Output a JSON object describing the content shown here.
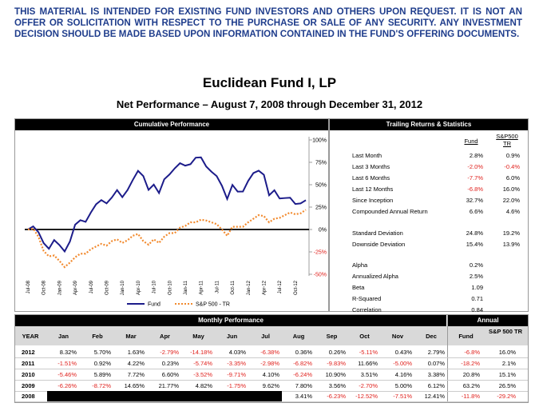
{
  "disclaimer": "THIS MATERIAL IS INTENDED FOR EXISTING FUND INVESTORS AND OTHERS UPON REQUEST. IT IS NOT AN OFFER OR SOLICITATION WITH RESPECT TO THE PURCHASE OR SALE OF ANY SECURITY. ANY INVESTMENT DECISION SHOULD BE MADE BASED UPON INFORMATION CONTAINED IN THE FUND'S OFFERING DOCUMENTS.",
  "title": "Euclidean Fund I, LP",
  "subtitle": "Net Performance – August 7, 2008 through December 31, 2012",
  "chart_data": {
    "type": "line",
    "title": "Cumulative Performance",
    "categories": [
      "Jul-08",
      null,
      null,
      "Oct-08",
      null,
      null,
      "Jan-09",
      null,
      null,
      "Apr-09",
      null,
      null,
      "Jul-09",
      null,
      null,
      "Oct-09",
      null,
      null,
      "Jan-10",
      null,
      null,
      "Apr-10",
      null,
      null,
      "Jul-10",
      null,
      null,
      "Oct-10",
      null,
      null,
      "Jan-11",
      null,
      null,
      "Apr-11",
      null,
      null,
      "Jul-11",
      null,
      null,
      "Oct-11",
      null,
      null,
      "Jan-12",
      null,
      null,
      "Apr-12",
      null,
      null,
      "Jul-12",
      null,
      null,
      "Oct-12",
      null,
      null
    ],
    "series": [
      {
        "name": "Fund",
        "color": "#1c1c8a",
        "dashed": false,
        "values": [
          0,
          3.4,
          -3.0,
          -15.2,
          -21.5,
          -11.8,
          -17.3,
          -24.5,
          -13.5,
          5.4,
          10.4,
          8.5,
          19.0,
          28.2,
          32.8,
          29.2,
          35.7,
          44.0,
          36.1,
          44.1,
          55.3,
          65.5,
          59.7,
          44.2,
          50.1,
          40.7,
          56.1,
          61.5,
          68.3,
          74.0,
          71.3,
          72.9,
          80.2,
          80.6,
          70.3,
          64.5,
          59.6,
          48.8,
          34.1,
          49.8,
          42.3,
          42.4,
          54.2,
          63.0,
          65.7,
          61.1,
          38.2,
          43.8,
          34.6,
          35.1,
          35.5,
          28.5,
          29.1,
          32.7
        ]
      },
      {
        "name": "S&P 500 - TR",
        "color": "#f28a2e",
        "dashed": true,
        "values": [
          0,
          1,
          -8,
          -24,
          -30,
          -29,
          -35,
          -42,
          -37,
          -31,
          -27,
          -27,
          -22,
          -19,
          -16,
          -18,
          -13,
          -11,
          -15,
          -12,
          -7,
          -5,
          -13,
          -17,
          -11,
          -15,
          -8,
          -4,
          -4,
          2,
          4,
          8,
          8,
          11,
          10,
          8,
          6,
          0,
          -7,
          3,
          3,
          3,
          8,
          12,
          16,
          15,
          8,
          12,
          13,
          16,
          19,
          17,
          18,
          22
        ]
      }
    ],
    "ylim": [
      -50,
      100
    ],
    "yticks": [
      {
        "value": 100,
        "label": "100%"
      },
      {
        "value": 75,
        "label": "75%"
      },
      {
        "value": 50,
        "label": "50%"
      },
      {
        "value": 25,
        "label": "25%"
      },
      {
        "value": 0,
        "label": "0%"
      },
      {
        "value": -25,
        "label": "-25%"
      },
      {
        "value": -50,
        "label": "-50%"
      }
    ]
  },
  "trailing": {
    "title": "Trailing Returns & Statistics",
    "columns": [
      "Fund",
      "S&P500 TR"
    ],
    "rows": [
      {
        "label": "Last Month",
        "values": [
          "2.8%",
          "0.9%"
        ]
      },
      {
        "label": "Last 3 Months",
        "values": [
          "-2.0%",
          "-0.4%"
        ]
      },
      {
        "label": "Last 6 Months",
        "values": [
          "-7.7%",
          "6.0%"
        ]
      },
      {
        "label": "Last 12 Months",
        "values": [
          "-6.8%",
          "16.0%"
        ]
      },
      {
        "label": "Since Inception",
        "values": [
          "32.7%",
          "22.0%"
        ]
      },
      {
        "label": "Compounded Annual Return",
        "values": [
          "6.6%",
          "4.6%"
        ]
      },
      {
        "label": "Standard Deviation",
        "values": [
          "24.8%",
          "19.2%"
        ]
      },
      {
        "label": "Downside Deviation",
        "values": [
          "15.4%",
          "13.9%"
        ]
      },
      {
        "label": "Alpha",
        "values": [
          "0.2%"
        ]
      },
      {
        "label": "Annualized Alpha",
        "values": [
          "2.5%"
        ]
      },
      {
        "label": "Beta",
        "values": [
          "1.09"
        ]
      },
      {
        "label": "R-Squared",
        "values": [
          "0.71"
        ]
      },
      {
        "label": "Correlation",
        "values": [
          "0.84"
        ]
      }
    ]
  },
  "monthly": {
    "title": "Monthly Performance",
    "annual_title": "Annual",
    "header": [
      "YEAR",
      "Jan",
      "Feb",
      "Mar",
      "Apr",
      "May",
      "Jun",
      "Jul",
      "Aug",
      "Sep",
      "Oct",
      "Nov",
      "Dec",
      "Fund",
      "S&P 500 TR"
    ],
    "rows": [
      [
        "2012",
        "8.32%",
        "5.70%",
        "1.63%",
        "-2.79%",
        "-14.18%",
        "4.03%",
        "-6.38%",
        "0.36%",
        "0.26%",
        "-5.11%",
        "0.43%",
        "2.79%",
        "-6.8%",
        "16.0%"
      ],
      [
        "2011",
        "-1.51%",
        "0.92%",
        "4.22%",
        "0.23%",
        "-5.74%",
        "-3.35%",
        "-2.98%",
        "-6.82%",
        "-9.83%",
        "11.66%",
        "-5.00%",
        "0.07%",
        "-18.2%",
        "2.1%"
      ],
      [
        "2010",
        "-5.46%",
        "5.89%",
        "7.72%",
        "6.60%",
        "-3.52%",
        "-9.71%",
        "4.10%",
        "-6.24%",
        "10.90%",
        "3.51%",
        "4.16%",
        "3.38%",
        "20.8%",
        "15.1%"
      ],
      [
        "2009",
        "-6.26%",
        "-8.72%",
        "14.65%",
        "21.77%",
        "4.82%",
        "-1.75%",
        "9.62%",
        "7.80%",
        "3.56%",
        "-2.70%",
        "5.00%",
        "6.12%",
        "63.2%",
        "26.5%"
      ],
      [
        "2008",
        null,
        null,
        null,
        null,
        null,
        null,
        null,
        "3.41%",
        "-6.23%",
        "-12.52%",
        "-7.51%",
        "12.41%",
        "-11.8%",
        "-29.2%"
      ]
    ]
  }
}
